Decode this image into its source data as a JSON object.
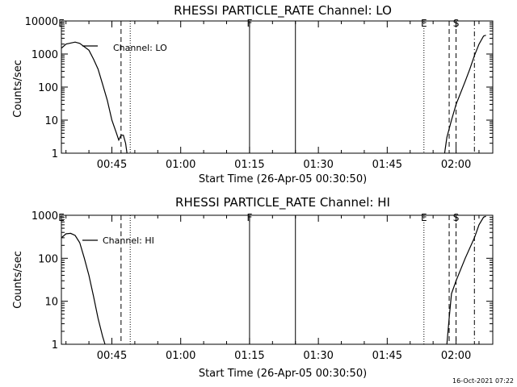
{
  "timestamp": "16-Oct-2021 07:22",
  "colors": {
    "background": "#ffffff",
    "foreground": "#000000"
  },
  "chart_data": [
    {
      "type": "line",
      "title": "RHESSI PARTICLE_RATE Channel: LO",
      "xlabel": "Start Time (26-Apr-05 00:30:50)",
      "ylabel": "Counts/sec",
      "y_scale": "log",
      "xlim": [
        "00:34",
        "02:08"
      ],
      "ylim": [
        1,
        10000
      ],
      "x_ticks": [
        "00:45",
        "01:00",
        "01:15",
        "01:30",
        "01:45",
        "02:00"
      ],
      "y_ticks": [
        "1",
        "10",
        "100",
        "1000",
        "10000"
      ],
      "grid": false,
      "legend_position": "top-left",
      "series": [
        {
          "name": "Channel: LO",
          "segments": [
            [
              [
                "00:34",
                1500
              ],
              [
                "00:35",
                2000
              ],
              [
                "00:37",
                2300
              ],
              [
                "00:38",
                2100
              ],
              [
                "00:40",
                1300
              ],
              [
                "00:41",
                700
              ],
              [
                "00:42",
                350
              ],
              [
                "00:43",
                120
              ],
              [
                "00:44",
                40
              ],
              [
                "00:45",
                10
              ],
              [
                "00:46",
                4
              ],
              [
                "00:46.5",
                2.5
              ],
              [
                "00:47",
                3.5
              ],
              [
                "00:47.5",
                3.5
              ],
              [
                "00:48",
                2
              ],
              [
                "00:48.3",
                1
              ]
            ],
            [
              [
                "01:57.5",
                1
              ],
              [
                "01:58",
                3
              ],
              [
                "01:59",
                10
              ],
              [
                "02:00",
                30
              ],
              [
                "02:02",
                150
              ],
              [
                "02:03",
                350
              ],
              [
                "02:04",
                900
              ],
              [
                "02:05",
                2000
              ],
              [
                "02:06",
                3500
              ],
              [
                "02:06.5",
                3700
              ]
            ]
          ]
        }
      ],
      "markers": [
        {
          "label": "E",
          "x": "00:34",
          "style": "dotted"
        },
        {
          "label": "",
          "x": "00:47",
          "style": "dashed"
        },
        {
          "label": "",
          "x": "00:49",
          "style": "dotted"
        },
        {
          "label": "F",
          "x": "01:15",
          "style": "solid"
        },
        {
          "label": "",
          "x": "01:25",
          "style": "solid"
        },
        {
          "label": "E",
          "x": "01:53",
          "style": "dotted"
        },
        {
          "label": "",
          "x": "01:58.5",
          "style": "dashed"
        },
        {
          "label": "S",
          "x": "02:00",
          "style": "dashed"
        },
        {
          "label": "",
          "x": "02:04",
          "style": "dashdot"
        }
      ]
    },
    {
      "type": "line",
      "title": "RHESSI PARTICLE_RATE Channel: HI",
      "xlabel": "Start Time (26-Apr-05 00:30:50)",
      "ylabel": "Counts/sec",
      "y_scale": "log",
      "xlim": [
        "00:34",
        "02:08"
      ],
      "ylim": [
        1,
        1000
      ],
      "x_ticks": [
        "00:45",
        "01:00",
        "01:15",
        "01:30",
        "01:45",
        "02:00"
      ],
      "y_ticks": [
        "1",
        "10",
        "100",
        "1000"
      ],
      "grid": false,
      "legend_position": "top-left",
      "series": [
        {
          "name": "Channel: HI",
          "segments": [
            [
              [
                "00:34",
                300
              ],
              [
                "00:35",
                370
              ],
              [
                "00:36",
                380
              ],
              [
                "00:37",
                340
              ],
              [
                "00:38",
                230
              ],
              [
                "00:39",
                100
              ],
              [
                "00:40",
                40
              ],
              [
                "00:41",
                13
              ],
              [
                "00:42",
                4
              ],
              [
                "00:43",
                1.5
              ],
              [
                "00:43.5",
                1
              ]
            ],
            [
              [
                "01:58",
                1
              ],
              [
                "01:58.5",
                4
              ],
              [
                "01:59",
                15
              ],
              [
                "02:00",
                30
              ],
              [
                "02:02",
                100
              ],
              [
                "02:04",
                300
              ],
              [
                "02:05",
                600
              ],
              [
                "02:06",
                900
              ],
              [
                "02:06.5",
                950
              ]
            ]
          ]
        }
      ],
      "markers": [
        {
          "label": "E",
          "x": "00:34",
          "style": "dotted"
        },
        {
          "label": "",
          "x": "00:47",
          "style": "dashed"
        },
        {
          "label": "",
          "x": "00:49",
          "style": "dotted"
        },
        {
          "label": "F",
          "x": "01:15",
          "style": "solid"
        },
        {
          "label": "",
          "x": "01:25",
          "style": "solid"
        },
        {
          "label": "E",
          "x": "01:53",
          "style": "dotted"
        },
        {
          "label": "",
          "x": "01:58.5",
          "style": "dashed"
        },
        {
          "label": "S",
          "x": "02:00",
          "style": "dashed"
        },
        {
          "label": "",
          "x": "02:04",
          "style": "dashdot"
        }
      ]
    }
  ]
}
